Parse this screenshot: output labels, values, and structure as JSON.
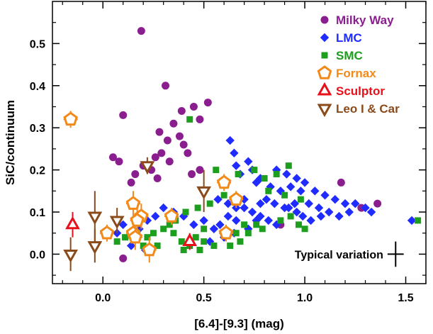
{
  "chart_data": {
    "type": "scatter",
    "xlabel": "[6.4]-[9.3] (mag)",
    "ylabel": "SiC/continuum",
    "xlim": [
      -0.25,
      1.6
    ],
    "ylim": [
      -0.07,
      0.6
    ],
    "xticks": [
      "0.0",
      "0.5",
      "1.0",
      "1.5"
    ],
    "yticks": [
      "0.0",
      "0.1",
      "0.2",
      "0.3",
      "0.4",
      "0.5"
    ],
    "xtick_values": [
      0.0,
      0.5,
      1.0,
      1.5
    ],
    "ytick_values": [
      0.0,
      0.1,
      0.2,
      0.3,
      0.4,
      0.5
    ],
    "legend_position": "top-right",
    "series": [
      {
        "name": "Milky Way",
        "marker": "circle",
        "color": "#8B1E8F",
        "points": [
          [
            0.19,
            0.53
          ],
          [
            0.31,
            0.4
          ],
          [
            0.1,
            0.33
          ],
          [
            0.52,
            0.36
          ],
          [
            0.45,
            0.35
          ],
          [
            0.39,
            0.34
          ],
          [
            0.48,
            0.32
          ],
          [
            0.28,
            0.29
          ],
          [
            0.35,
            0.31
          ],
          [
            0.38,
            0.28
          ],
          [
            0.32,
            0.27
          ],
          [
            0.29,
            0.24
          ],
          [
            0.4,
            0.26
          ],
          [
            0.42,
            0.24
          ],
          [
            0.26,
            0.23
          ],
          [
            0.33,
            0.22
          ],
          [
            0.24,
            0.2
          ],
          [
            0.2,
            0.21
          ],
          [
            0.16,
            0.19
          ],
          [
            0.14,
            0.17
          ],
          [
            0.05,
            0.23
          ],
          [
            0.08,
            0.22
          ],
          [
            0.27,
            0.18
          ],
          [
            0.48,
            0.2
          ],
          [
            0.44,
            0.19
          ],
          [
            1.18,
            0.17
          ],
          [
            1.36,
            0.12
          ],
          [
            1.28,
            0.11
          ],
          [
            0.88,
            0.07
          ],
          [
            0.1,
            -0.01
          ]
        ]
      },
      {
        "name": "LMC",
        "marker": "diamond",
        "color": "#1F2BFF",
        "points": [
          [
            0.63,
            0.27
          ],
          [
            0.65,
            0.24
          ],
          [
            0.72,
            0.22
          ],
          [
            0.66,
            0.21
          ],
          [
            0.74,
            0.2
          ],
          [
            0.78,
            0.18
          ],
          [
            0.86,
            0.2
          ],
          [
            0.91,
            0.19
          ],
          [
            0.96,
            0.18
          ],
          [
            0.68,
            0.19
          ],
          [
            0.76,
            0.17
          ],
          [
            0.83,
            0.16
          ],
          [
            0.88,
            0.15
          ],
          [
            0.93,
            0.16
          ],
          [
            0.98,
            0.15
          ],
          [
            1.0,
            0.17
          ],
          [
            1.05,
            0.15
          ],
          [
            1.1,
            0.14
          ],
          [
            1.15,
            0.13
          ],
          [
            1.2,
            0.12
          ],
          [
            1.25,
            0.12
          ],
          [
            1.3,
            0.11
          ],
          [
            1.33,
            0.1
          ],
          [
            1.02,
            0.12
          ],
          [
            1.07,
            0.11
          ],
          [
            1.12,
            0.1
          ],
          [
            1.17,
            0.09
          ],
          [
            1.22,
            0.1
          ],
          [
            0.81,
            0.13
          ],
          [
            0.85,
            0.12
          ],
          [
            0.92,
            0.11
          ],
          [
            0.96,
            0.1
          ],
          [
            0.99,
            0.09
          ],
          [
            1.03,
            0.08
          ],
          [
            0.7,
            0.11
          ],
          [
            0.74,
            0.1
          ],
          [
            0.78,
            0.09
          ],
          [
            0.82,
            0.08
          ],
          [
            0.86,
            0.07
          ],
          [
            0.62,
            0.09
          ],
          [
            0.66,
            0.08
          ],
          [
            0.58,
            0.07
          ],
          [
            0.55,
            0.06
          ],
          [
            0.5,
            0.08
          ],
          [
            0.45,
            0.07
          ],
          [
            0.4,
            0.09
          ],
          [
            0.35,
            0.1
          ],
          [
            0.3,
            0.11
          ],
          [
            0.26,
            0.09
          ],
          [
            0.22,
            0.08
          ],
          [
            0.18,
            0.06
          ],
          [
            0.15,
            0.05
          ],
          [
            0.1,
            0.07
          ],
          [
            0.07,
            0.05
          ],
          [
            0.14,
            0.02
          ],
          [
            0.21,
            0.01
          ],
          [
            0.57,
            0.13
          ],
          [
            0.62,
            0.12
          ],
          [
            0.66,
            0.11
          ],
          [
            0.7,
            0.13
          ],
          [
            0.78,
            0.12
          ],
          [
            0.9,
            0.11
          ],
          [
            0.95,
            0.12
          ],
          [
            1.08,
            0.09
          ],
          [
            1.53,
            0.08
          ],
          [
            0.53,
            0.03
          ],
          [
            0.6,
            0.04
          ],
          [
            0.65,
            0.05
          ],
          [
            0.72,
            0.06
          ],
          [
            0.76,
            0.08
          ]
        ]
      },
      {
        "name": "SMC",
        "marker": "square",
        "color": "#1E9E1E",
        "points": [
          [
            0.43,
            0.32
          ],
          [
            0.56,
            0.2
          ],
          [
            0.67,
            0.19
          ],
          [
            0.75,
            0.2
          ],
          [
            0.8,
            0.18
          ],
          [
            0.86,
            0.19
          ],
          [
            0.92,
            0.21
          ],
          [
            0.82,
            0.15
          ],
          [
            0.9,
            0.14
          ],
          [
            0.98,
            0.13
          ],
          [
            0.6,
            0.14
          ],
          [
            0.53,
            0.12
          ],
          [
            0.47,
            0.11
          ],
          [
            0.41,
            0.1
          ],
          [
            0.36,
            0.08
          ],
          [
            0.33,
            0.07
          ],
          [
            0.3,
            0.06
          ],
          [
            0.25,
            0.05
          ],
          [
            0.22,
            0.04
          ],
          [
            0.17,
            0.05
          ],
          [
            0.11,
            0.04
          ],
          [
            0.07,
            0.03
          ],
          [
            0.2,
            0.02
          ],
          [
            0.27,
            0.02
          ],
          [
            0.4,
            0.01
          ],
          [
            0.43,
            0.02
          ],
          [
            0.46,
            0.04
          ],
          [
            0.5,
            0.03
          ],
          [
            0.55,
            0.02
          ],
          [
            0.63,
            0.02
          ],
          [
            0.68,
            0.03
          ],
          [
            0.72,
            0.05
          ],
          [
            0.76,
            0.07
          ],
          [
            0.79,
            0.06
          ],
          [
            0.66,
            0.05
          ],
          [
            0.7,
            0.07
          ],
          [
            0.88,
            0.08
          ],
          [
            0.93,
            0.09
          ],
          [
            0.97,
            0.07
          ],
          [
            1.0,
            0.06
          ],
          [
            1.56,
            0.08
          ],
          [
            0.5,
            0.06
          ],
          [
            0.48,
            0.01
          ],
          [
            0.39,
            0.03
          ],
          [
            0.35,
            0.05
          ]
        ]
      },
      {
        "name": "Fornax",
        "marker": "pentagon",
        "color": "#F28A1A",
        "points": [
          [
            -0.16,
            0.32,
            0.02
          ],
          [
            0.6,
            0.17,
            0.02
          ],
          [
            0.66,
            0.13,
            0.02
          ],
          [
            0.34,
            0.09,
            0.02
          ],
          [
            0.15,
            0.12,
            0.03
          ],
          [
            0.19,
            0.09,
            0.03
          ],
          [
            0.17,
            0.08,
            0.03
          ],
          [
            0.15,
            0.05,
            0.02
          ],
          [
            0.16,
            0.04,
            0.03
          ],
          [
            0.23,
            0.01,
            0.03
          ],
          [
            0.02,
            0.05,
            0.02
          ],
          [
            0.61,
            0.05,
            0.02
          ]
        ]
      },
      {
        "name": "Sculptor",
        "marker": "triangle-up",
        "color": "#E8101A",
        "points": [
          [
            -0.15,
            0.07,
            0.03
          ],
          [
            0.43,
            0.03,
            0.02
          ]
        ]
      },
      {
        "name": "Leo I & Car",
        "marker": "triangle-down",
        "color": "#8A4A1A",
        "points": [
          [
            0.22,
            0.21,
            0.02
          ],
          [
            0.5,
            0.15,
            0.05
          ],
          [
            -0.04,
            0.09,
            0.06
          ],
          [
            -0.04,
            0.02,
            0.04
          ],
          [
            0.07,
            0.08,
            0.03
          ],
          [
            -0.16,
            0.0,
            0.04
          ]
        ]
      }
    ],
    "annotation": {
      "label": "Typical variation",
      "x": 1.45,
      "y": 0.0,
      "xerr": 0.04,
      "yerr": 0.03
    }
  }
}
